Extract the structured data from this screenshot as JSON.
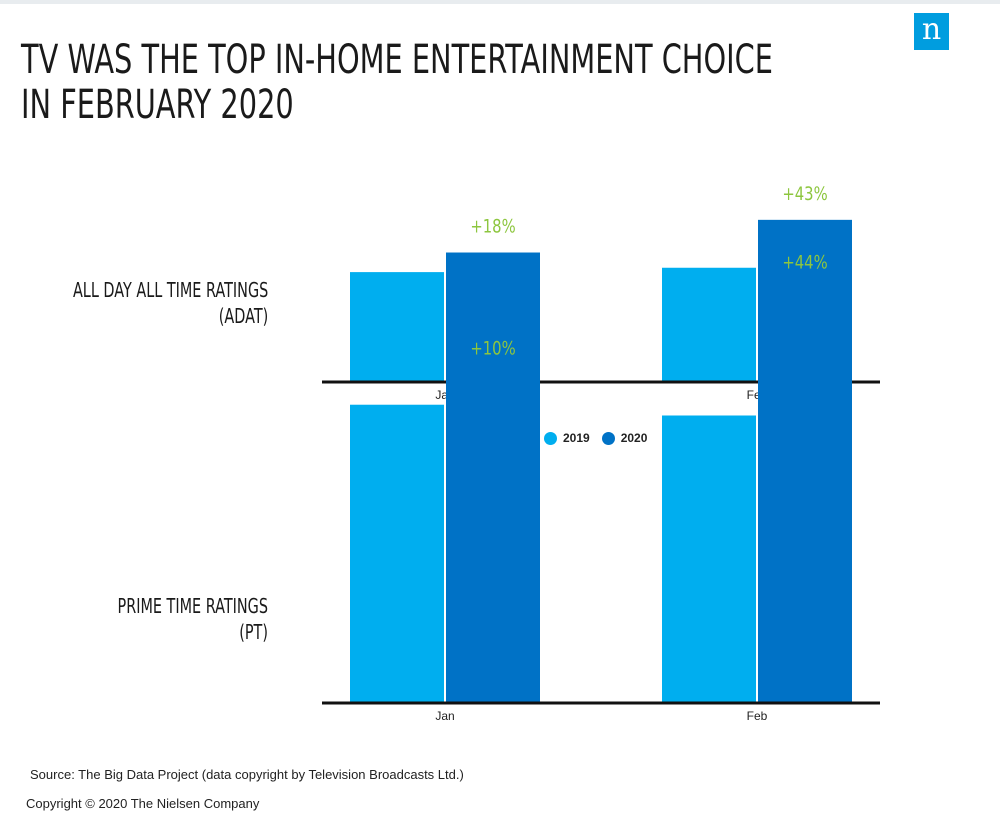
{
  "title": [
    "TV WAS THE TOP IN-HOME ENTERTAINMENT CHOICE",
    "IN FEBRUARY 2020"
  ],
  "logo": {
    "letter": "n",
    "icon": "nielsen-logo-icon",
    "color": "#009ddf"
  },
  "colors": {
    "series_2019": "#00aeef",
    "series_2020": "#0072c6",
    "annotation": "#8dc63f",
    "axis": "#111111"
  },
  "legend": [
    {
      "label": "2019",
      "color": "#00aeef"
    },
    {
      "label": "2020",
      "color": "#0072c6"
    }
  ],
  "chart_data": [
    {
      "type": "bar",
      "row_label": [
        "ALL DAY ALL TIME RATINGS",
        "(ADAT)"
      ],
      "categories": [
        "Jan",
        "Feb"
      ],
      "series": [
        {
          "name": "2019",
          "values": [
            5.0,
            5.2
          ]
        },
        {
          "name": "2020",
          "values": [
            5.9,
            7.4
          ]
        }
      ],
      "annotations": [
        "+18%",
        "+43%"
      ],
      "ylim": [
        0,
        9
      ]
    },
    {
      "type": "bar",
      "row_label": [
        "PRIME TIME RATINGS",
        "(PT)"
      ],
      "categories": [
        "Jan",
        "Feb"
      ],
      "series": [
        {
          "name": "2019",
          "values": [
            13.8,
            13.3
          ]
        },
        {
          "name": "2020",
          "values": [
            15.2,
            19.2
          ]
        }
      ],
      "annotations": [
        "+10%",
        "+44%"
      ],
      "ylim": [
        0,
        24
      ]
    }
  ],
  "footer": {
    "source": "Source: The Big Data Project (data copyright by Television Broadcasts Ltd.)",
    "copyright": "Copyright © 2020 The Nielsen Company"
  }
}
